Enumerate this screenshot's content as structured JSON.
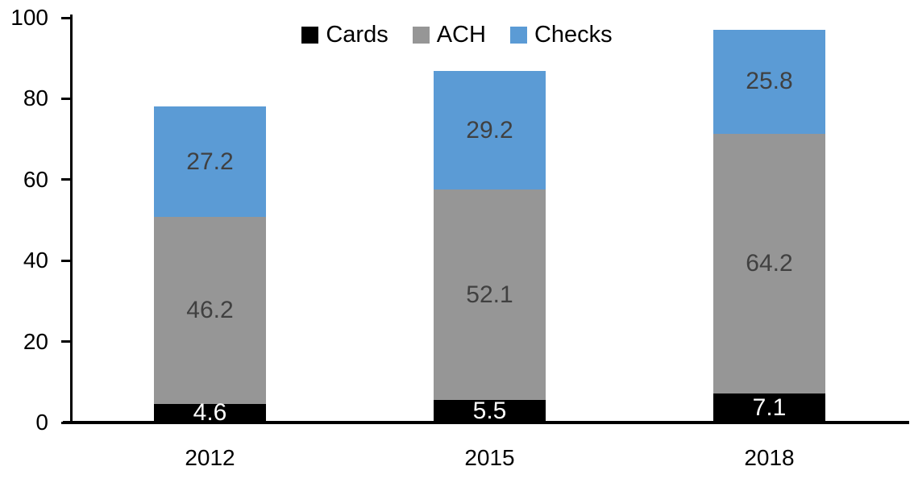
{
  "chart_data": {
    "type": "bar",
    "stacked": true,
    "title": "",
    "xlabel": "",
    "ylabel": "",
    "categories": [
      "2012",
      "2015",
      "2018"
    ],
    "series": [
      {
        "name": "Cards",
        "color": "#000000",
        "label_color": "#ffffff",
        "values": [
          4.6,
          5.5,
          7.1
        ]
      },
      {
        "name": "ACH",
        "color": "#969696",
        "label_color": "#404040",
        "values": [
          46.2,
          52.1,
          64.2
        ]
      },
      {
        "name": "Checks",
        "color": "#5b9bd5",
        "label_color": "#404040",
        "values": [
          27.2,
          29.2,
          25.8
        ]
      }
    ],
    "totals": [
      78.0,
      86.8,
      97.1
    ],
    "y_ticks": [
      0,
      20,
      40,
      60,
      80,
      100
    ],
    "ylim": [
      0,
      100
    ],
    "grid": false,
    "legend_position": "top",
    "data_labels_shown": true,
    "axis_color": "#000000"
  }
}
